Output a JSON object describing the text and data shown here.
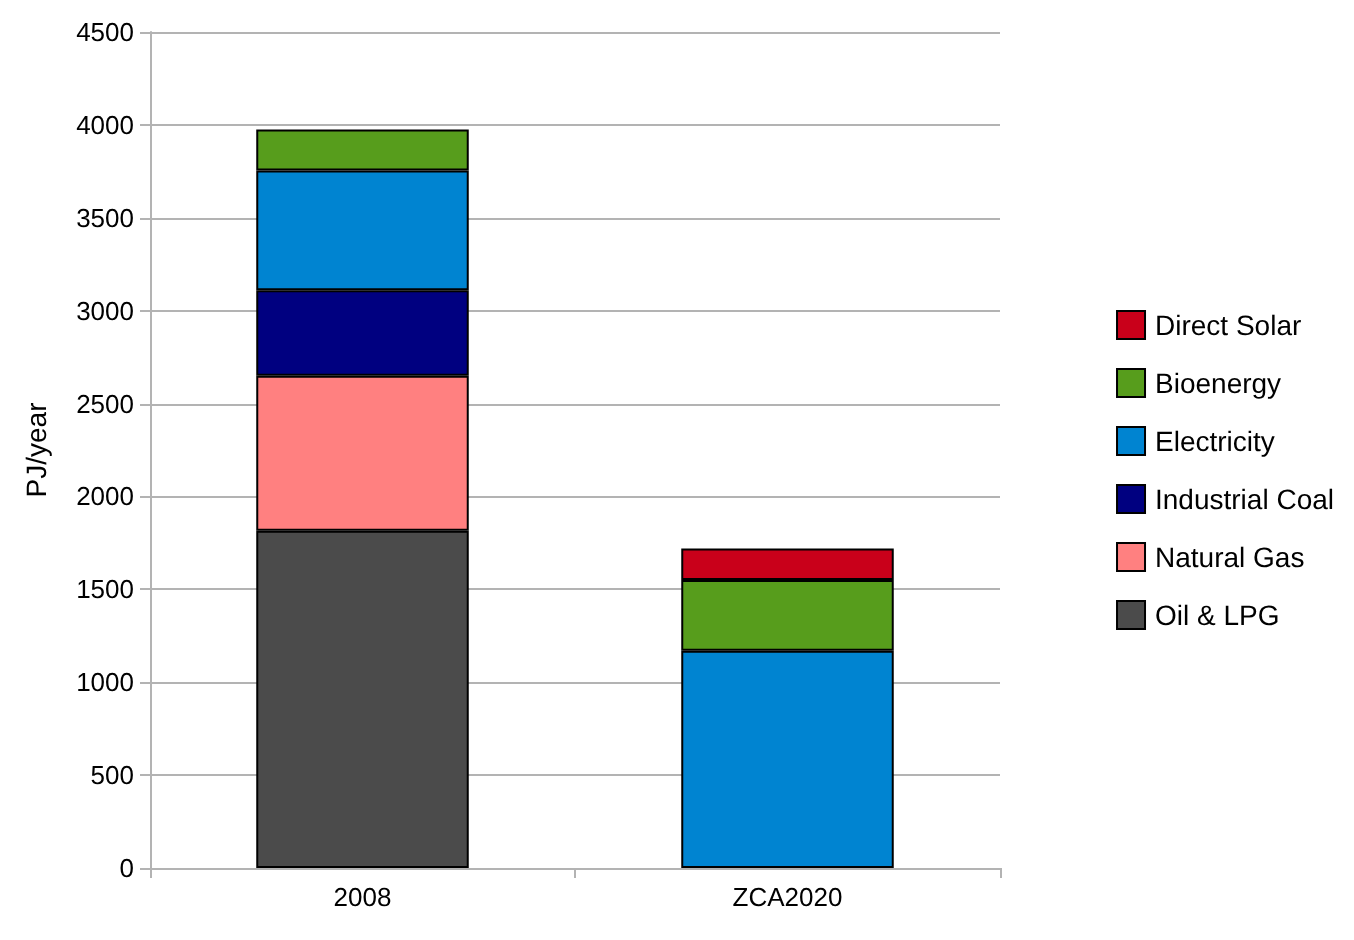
{
  "chart_data": {
    "type": "bar",
    "stacked": true,
    "ylabel": "PJ/year",
    "categories": [
      "2008",
      "ZCA2020"
    ],
    "series": [
      {
        "name": "Oil & LPG",
        "color": "#4b4b4b",
        "values": [
          1815,
          null
        ]
      },
      {
        "name": "Natural Gas",
        "color": "#ff8080",
        "values": [
          835,
          null
        ]
      },
      {
        "name": "Industrial Coal",
        "color": "#000080",
        "values": [
          460,
          null
        ]
      },
      {
        "name": "Electricity",
        "color": "#0084d1",
        "values": [
          645,
          1170
        ]
      },
      {
        "name": "Bioenergy",
        "color": "#579d1c",
        "values": [
          220,
          380
        ]
      },
      {
        "name": "Direct Solar",
        "color": "#c9001a",
        "values": [
          null,
          170
        ]
      }
    ],
    "ylim": [
      0,
      4500
    ],
    "yticks": [
      0,
      500,
      1000,
      1500,
      2000,
      2500,
      3000,
      3500,
      4000,
      4500
    ],
    "grid": "y",
    "legend": "right"
  }
}
